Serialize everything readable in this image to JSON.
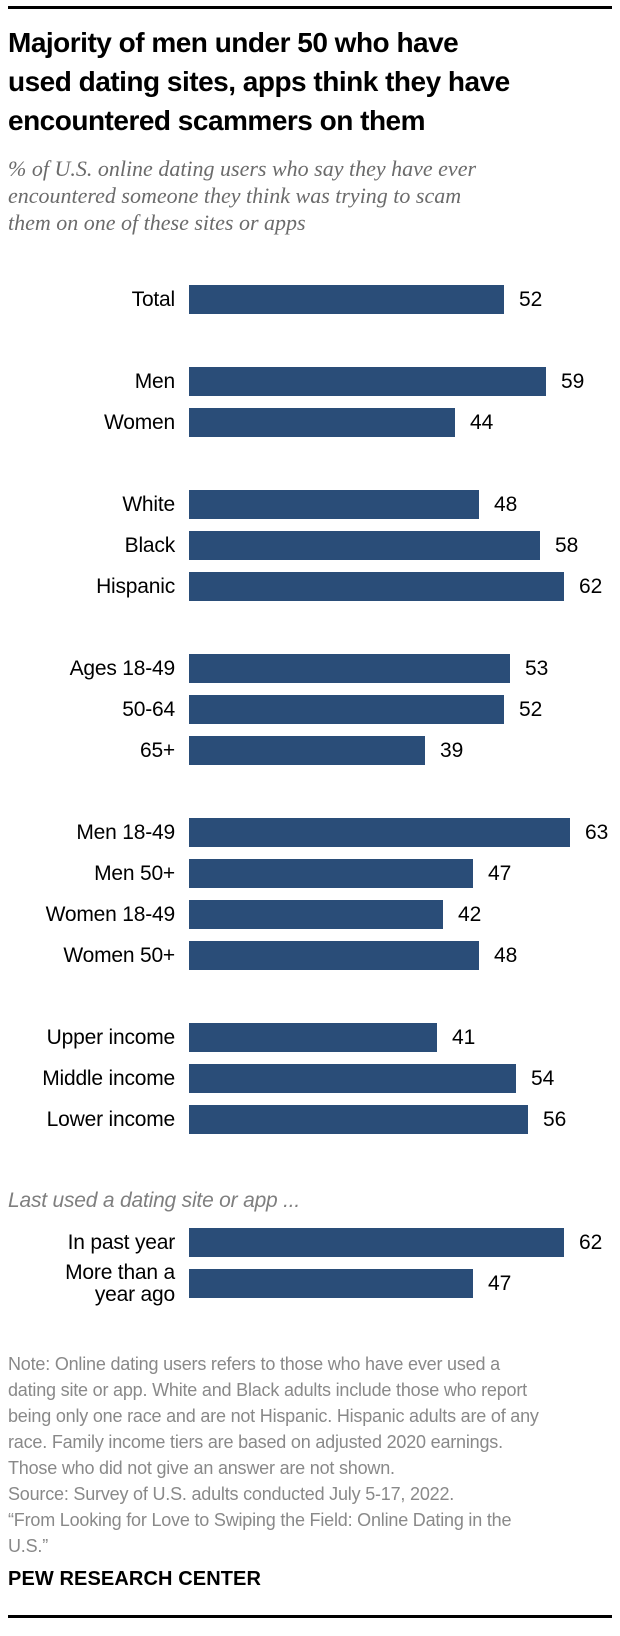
{
  "header": {
    "title": "Majority of men under 50 who have\nused dating sites, apps think they have\nencountered scammers on them",
    "subtitle": "% of U.S. online dating users who say they have ever\nencountered someone they think was trying to scam\nthem on one of these sites or apps"
  },
  "chart_data": {
    "type": "bar",
    "orientation": "horizontal",
    "unit": "%",
    "bar_color": "#2a4d78",
    "xlim": [
      0,
      70
    ],
    "axis_hidden": true,
    "value_labels_shown": true,
    "groups": [
      {
        "heading": "",
        "bars": [
          {
            "label": "Total",
            "value": 52
          }
        ]
      },
      {
        "heading": "",
        "bars": [
          {
            "label": "Men",
            "value": 59
          },
          {
            "label": "Women",
            "value": 44
          }
        ]
      },
      {
        "heading": "",
        "bars": [
          {
            "label": "White",
            "value": 48
          },
          {
            "label": "Black",
            "value": 58
          },
          {
            "label": "Hispanic",
            "value": 62
          }
        ]
      },
      {
        "heading": "",
        "bars": [
          {
            "label": "Ages 18-49",
            "value": 53
          },
          {
            "label": "50-64",
            "value": 52
          },
          {
            "label": "65+",
            "value": 39
          }
        ]
      },
      {
        "heading": "",
        "bars": [
          {
            "label": "Men 18-49",
            "value": 63
          },
          {
            "label": "Men 50+",
            "value": 47
          },
          {
            "label": "Women 18-49",
            "value": 42
          },
          {
            "label": "Women 50+",
            "value": 48
          }
        ]
      },
      {
        "heading": "",
        "bars": [
          {
            "label": "Upper income",
            "value": 41
          },
          {
            "label": "Middle income",
            "value": 54
          },
          {
            "label": "Lower income",
            "value": 56
          }
        ]
      },
      {
        "heading": "Last used a dating site or app ...",
        "bars": [
          {
            "label": "In past year",
            "value": 62
          },
          {
            "label": "More than a\nyear ago",
            "value": 47
          }
        ]
      }
    ]
  },
  "footer": {
    "note": "Note: Online dating users refers to those who have ever used a\ndating site or app. White and Black adults include those who report\nbeing only one race and are not Hispanic. Hispanic adults are of any\nrace. Family income tiers are based on adjusted 2020 earnings.\nThose who did not give an answer are not shown.",
    "source": "Source: Survey of U.S. adults conducted July 5-17, 2022.",
    "report": "“From Looking for Love to Swiping the Field: Online Dating in the\nU.S.”",
    "org": "PEW RESEARCH CENTER"
  }
}
